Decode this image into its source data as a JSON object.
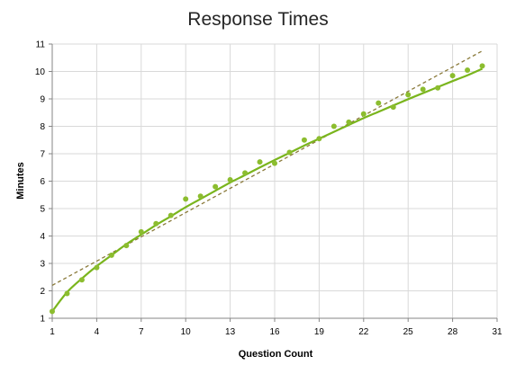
{
  "chart_data": {
    "type": "scatter",
    "title": "Response Times",
    "xlabel": "Question Count",
    "ylabel": "Minutes",
    "xlim": [
      1,
      31
    ],
    "ylim": [
      1,
      11
    ],
    "xticks": [
      1,
      4,
      7,
      10,
      13,
      16,
      19,
      22,
      25,
      28,
      31
    ],
    "yticks": [
      1,
      2,
      3,
      4,
      5,
      6,
      7,
      8,
      9,
      10,
      11
    ],
    "grid": true,
    "legend": "none",
    "colors": {
      "points": "#8cbd2f",
      "curve": "#7ab51d",
      "trend": "#8a7a3a"
    },
    "series": [
      {
        "x": [
          1,
          2,
          3,
          4,
          5,
          6,
          7,
          8,
          9,
          10,
          11,
          12,
          13,
          14,
          15,
          16,
          17,
          18,
          19,
          20,
          21,
          22,
          23,
          24,
          25,
          26,
          27,
          28,
          29,
          30
        ],
        "y": [
          1.25,
          1.9,
          2.4,
          2.85,
          3.3,
          3.65,
          4.15,
          4.45,
          4.75,
          5.35,
          5.45,
          5.8,
          6.05,
          6.3,
          6.7,
          6.65,
          7.05,
          7.5,
          7.55,
          8.0,
          8.15,
          8.45,
          8.85,
          8.7,
          9.15,
          9.35,
          9.4,
          9.85,
          10.05,
          10.2
        ]
      }
    ],
    "fit_curve": {
      "x": [
        1,
        2,
        3,
        4,
        5,
        6,
        7,
        8,
        9,
        10,
        11,
        12,
        13,
        14,
        15,
        16,
        17,
        18,
        19,
        20,
        21,
        22,
        23,
        24,
        25,
        26,
        27,
        28,
        29,
        30
      ],
      "y": [
        1.25,
        1.95,
        2.45,
        2.9,
        3.3,
        3.7,
        4.05,
        4.4,
        4.72,
        5.05,
        5.35,
        5.65,
        5.95,
        6.22,
        6.5,
        6.77,
        7.03,
        7.3,
        7.55,
        7.8,
        8.05,
        8.3,
        8.53,
        8.76,
        8.99,
        9.21,
        9.43,
        9.65,
        9.86,
        10.1
      ]
    },
    "trend_line": {
      "x": [
        1,
        30
      ],
      "y": [
        2.2,
        10.75
      ]
    }
  }
}
